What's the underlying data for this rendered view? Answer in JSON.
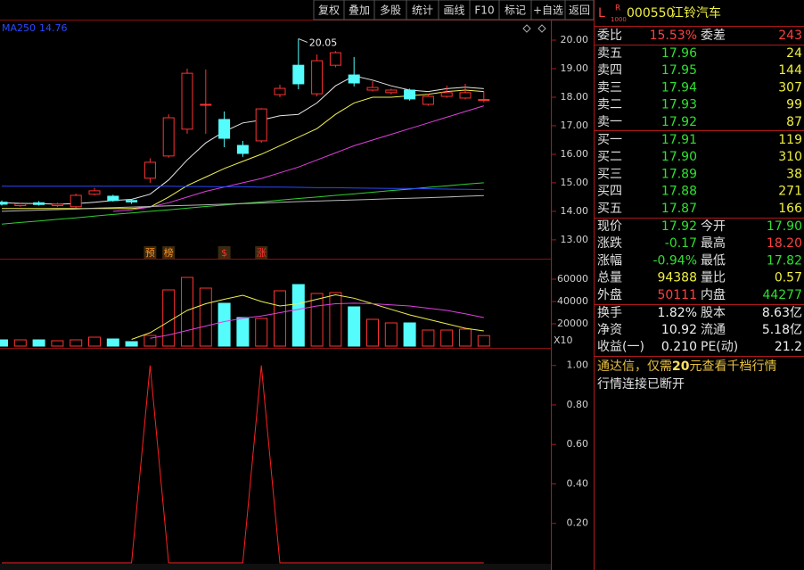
{
  "toolbar": [
    "复权",
    "叠加",
    "多股",
    "统计",
    "画线",
    "F10",
    "标记",
    "+自选",
    "返回"
  ],
  "chart_data": [
    {
      "type": "candlestick",
      "open": [
        14.32,
        14.2,
        14.3,
        14.2,
        14.16,
        14.6,
        14.53,
        14.38,
        15.16,
        15.94,
        16.88,
        17.72,
        17.22,
        16.31,
        16.47,
        18.09,
        19.12,
        18.12,
        19.12,
        18.78,
        18.25,
        18.16,
        18.25,
        17.75,
        18.03,
        17.97,
        17.9
      ],
      "close": [
        14.25,
        14.26,
        14.24,
        14.25,
        14.56,
        14.72,
        14.38,
        14.33,
        15.72,
        17.28,
        18.84,
        17.75,
        16.56,
        16.03,
        17.59,
        18.31,
        18.47,
        19.28,
        19.56,
        18.5,
        18.34,
        18.25,
        17.94,
        18.03,
        18.16,
        18.16,
        17.92
      ],
      "high": [
        14.38,
        14.3,
        14.36,
        14.3,
        14.62,
        14.82,
        14.58,
        14.42,
        15.86,
        17.4,
        19.0,
        18.97,
        17.5,
        16.47,
        17.62,
        18.44,
        20.05,
        19.5,
        19.62,
        19.41,
        18.56,
        18.3,
        18.3,
        18.12,
        18.41,
        18.47,
        18.2
      ],
      "low": [
        14.2,
        14.16,
        14.2,
        14.15,
        14.12,
        14.56,
        14.34,
        14.26,
        15.0,
        15.88,
        16.72,
        16.72,
        16.25,
        15.91,
        16.4,
        18.0,
        18.28,
        18.03,
        19.05,
        18.38,
        18.2,
        18.1,
        17.88,
        17.7,
        17.98,
        17.92,
        17.82
      ],
      "up_color": "#ff3232",
      "down_color": "#54fcfc",
      "series": [
        {
          "color": "#e6e6e6",
          "values": [
            14.3,
            14.28,
            14.27,
            14.25,
            14.27,
            14.32,
            14.38,
            14.42,
            14.6,
            15.1,
            15.8,
            16.4,
            16.8,
            17.1,
            17.2,
            17.35,
            17.4,
            17.8,
            18.4,
            18.75,
            18.6,
            18.4,
            18.25,
            18.2,
            18.3,
            18.35,
            18.3
          ]
        },
        {
          "color": "#f0f050",
          "values": [
            14.1,
            14.1,
            14.1,
            14.1,
            14.1,
            14.1,
            14.1,
            14.1,
            14.15,
            14.5,
            14.9,
            15.2,
            15.5,
            15.75,
            16.0,
            16.3,
            16.6,
            16.9,
            17.4,
            17.8,
            18.0,
            18.0,
            18.05,
            18.1,
            18.2,
            18.25,
            18.2
          ]
        },
        {
          "color": "#e040e0",
          "values": [
            null,
            null,
            null,
            null,
            null,
            null,
            14.0,
            14.05,
            14.15,
            14.3,
            14.5,
            14.7,
            14.85,
            15.0,
            15.15,
            15.35,
            15.55,
            15.8,
            16.05,
            16.3,
            16.5,
            16.7,
            16.9,
            17.1,
            17.3,
            17.5,
            17.7
          ]
        },
        {
          "color": "#30d030",
          "values": [
            13.55,
            13.61,
            13.66,
            13.72,
            13.77,
            13.83,
            13.89,
            13.94,
            14.0,
            14.05,
            14.11,
            14.17,
            14.22,
            14.28,
            14.33,
            14.39,
            14.45,
            14.5,
            14.56,
            14.61,
            14.67,
            14.73,
            14.78,
            14.84,
            14.89,
            14.95,
            15.0
          ]
        },
        {
          "color": "#b8b8b8",
          "values": [
            14.0,
            14.02,
            14.04,
            14.06,
            14.08,
            14.11,
            14.13,
            14.15,
            14.17,
            14.19,
            14.21,
            14.23,
            14.25,
            14.27,
            14.29,
            14.32,
            14.34,
            14.36,
            14.38,
            14.4,
            14.42,
            14.44,
            14.46,
            14.48,
            14.5,
            14.53,
            14.55
          ]
        },
        {
          "name": "MA250",
          "color": "#2a48ff",
          "values": [
            14.88,
            14.88,
            14.88,
            14.88,
            14.88,
            14.88,
            14.88,
            14.88,
            14.88,
            14.88,
            14.87,
            14.87,
            14.86,
            14.86,
            14.85,
            14.85,
            14.84,
            14.83,
            14.83,
            14.82,
            14.81,
            14.8,
            14.8,
            14.79,
            14.78,
            14.77,
            14.76
          ]
        }
      ],
      "annotations": [
        "预",
        "榜",
        "$",
        "涨"
      ],
      "ylim": [
        12.34,
        20.72
      ],
      "yticks": [
        {
          "value": 20,
          "label": "20.00"
        },
        {
          "value": 19,
          "label": "19.00"
        },
        {
          "value": 18,
          "label": "18.00"
        },
        {
          "value": 17,
          "label": "17.00"
        },
        {
          "value": 16,
          "label": "16.00"
        },
        {
          "value": 15,
          "label": "15.00"
        },
        {
          "value": 14,
          "label": "14.00"
        },
        {
          "value": 13,
          "label": "13.00"
        }
      ]
    },
    {
      "type": "bar",
      "unit_label": "X10",
      "series": [
        {
          "values": [
            5600,
            5600,
            5600,
            4800,
            5600,
            8000,
            6400,
            4000,
            9600,
            50400,
            61600,
            52000,
            38400,
            25600,
            24800,
            49600,
            55200,
            47200,
            48000,
            35200,
            24000,
            20800,
            20800,
            14400,
            14400,
            15200,
            9439
          ]
        },
        {
          "type": "line",
          "color": "#f0f050",
          "values": [
            null,
            null,
            null,
            null,
            null,
            null,
            null,
            6000,
            12000,
            22000,
            32000,
            38000,
            42000,
            45600,
            40000,
            36000,
            38000,
            42000,
            46000,
            43000,
            38000,
            33000,
            28000,
            24000,
            20000,
            16000,
            13600
          ]
        },
        {
          "type": "line",
          "color": "#e040e0",
          "values": [
            null,
            null,
            null,
            null,
            null,
            null,
            null,
            null,
            7000,
            10000,
            14000,
            18000,
            22000,
            25000,
            27000,
            30000,
            33000,
            36000,
            38000,
            38500,
            38000,
            37000,
            36000,
            34000,
            32000,
            29000,
            25600
          ]
        }
      ],
      "ylim": [
        0,
        78400
      ],
      "yticks": [
        60000,
        40000,
        20000
      ]
    },
    {
      "type": "line",
      "color": "#ff2020",
      "values": [
        0,
        0,
        0,
        0,
        0,
        0,
        0,
        0,
        1,
        0,
        0,
        0,
        0,
        0,
        1,
        0,
        0,
        0,
        0,
        0,
        0,
        0,
        0,
        0,
        0,
        0,
        0
      ],
      "ylim": [
        0,
        1.08
      ],
      "yticks": [
        {
          "value": 1,
          "label": "1.00"
        },
        {
          "value": 0.8,
          "label": "0.80"
        },
        {
          "value": 0.6,
          "label": "0.60"
        },
        {
          "value": 0.4,
          "label": "0.40"
        },
        {
          "value": 0.2,
          "label": "0.20"
        }
      ]
    }
  ],
  "quote": {
    "header": {
      "flag": "L",
      "sup": "R",
      "sub": "1000",
      "code": "000550",
      "name": "江铃汽车"
    },
    "ratio": [
      "委比",
      "15.53%",
      "委差",
      "243"
    ],
    "asks": [
      [
        "卖五",
        "17.96",
        "24"
      ],
      [
        "卖四",
        "17.95",
        "144"
      ],
      [
        "卖三",
        "17.94",
        "307"
      ],
      [
        "卖二",
        "17.93",
        "99"
      ],
      [
        "卖一",
        "17.92",
        "87"
      ]
    ],
    "bids": [
      [
        "买一",
        "17.91",
        "119"
      ],
      [
        "买二",
        "17.90",
        "310"
      ],
      [
        "买三",
        "17.89",
        "38"
      ],
      [
        "买四",
        "17.88",
        "271"
      ],
      [
        "买五",
        "17.87",
        "166"
      ]
    ],
    "stats": [
      [
        "现价",
        "17.92",
        "今开",
        "17.90"
      ],
      [
        "涨跌",
        "-0.17",
        "最高",
        "18.20"
      ],
      [
        "涨幅",
        "-0.94%",
        "最低",
        "17.82"
      ],
      [
        "总量",
        "94388",
        "量比",
        "0.57"
      ],
      [
        "外盘",
        "50111",
        "内盘",
        "44277"
      ]
    ],
    "finance": [
      [
        "换手",
        "1.82%",
        "股本",
        "8.63亿"
      ],
      [
        "净资",
        "10.92",
        "流通",
        "5.18亿"
      ],
      [
        "收益(一)",
        "0.210",
        "PE(动)",
        "21.2"
      ]
    ],
    "notice": [
      "通达信，仅需",
      "20",
      "元查看千档行情"
    ],
    "status": "行情连接已断开"
  }
}
